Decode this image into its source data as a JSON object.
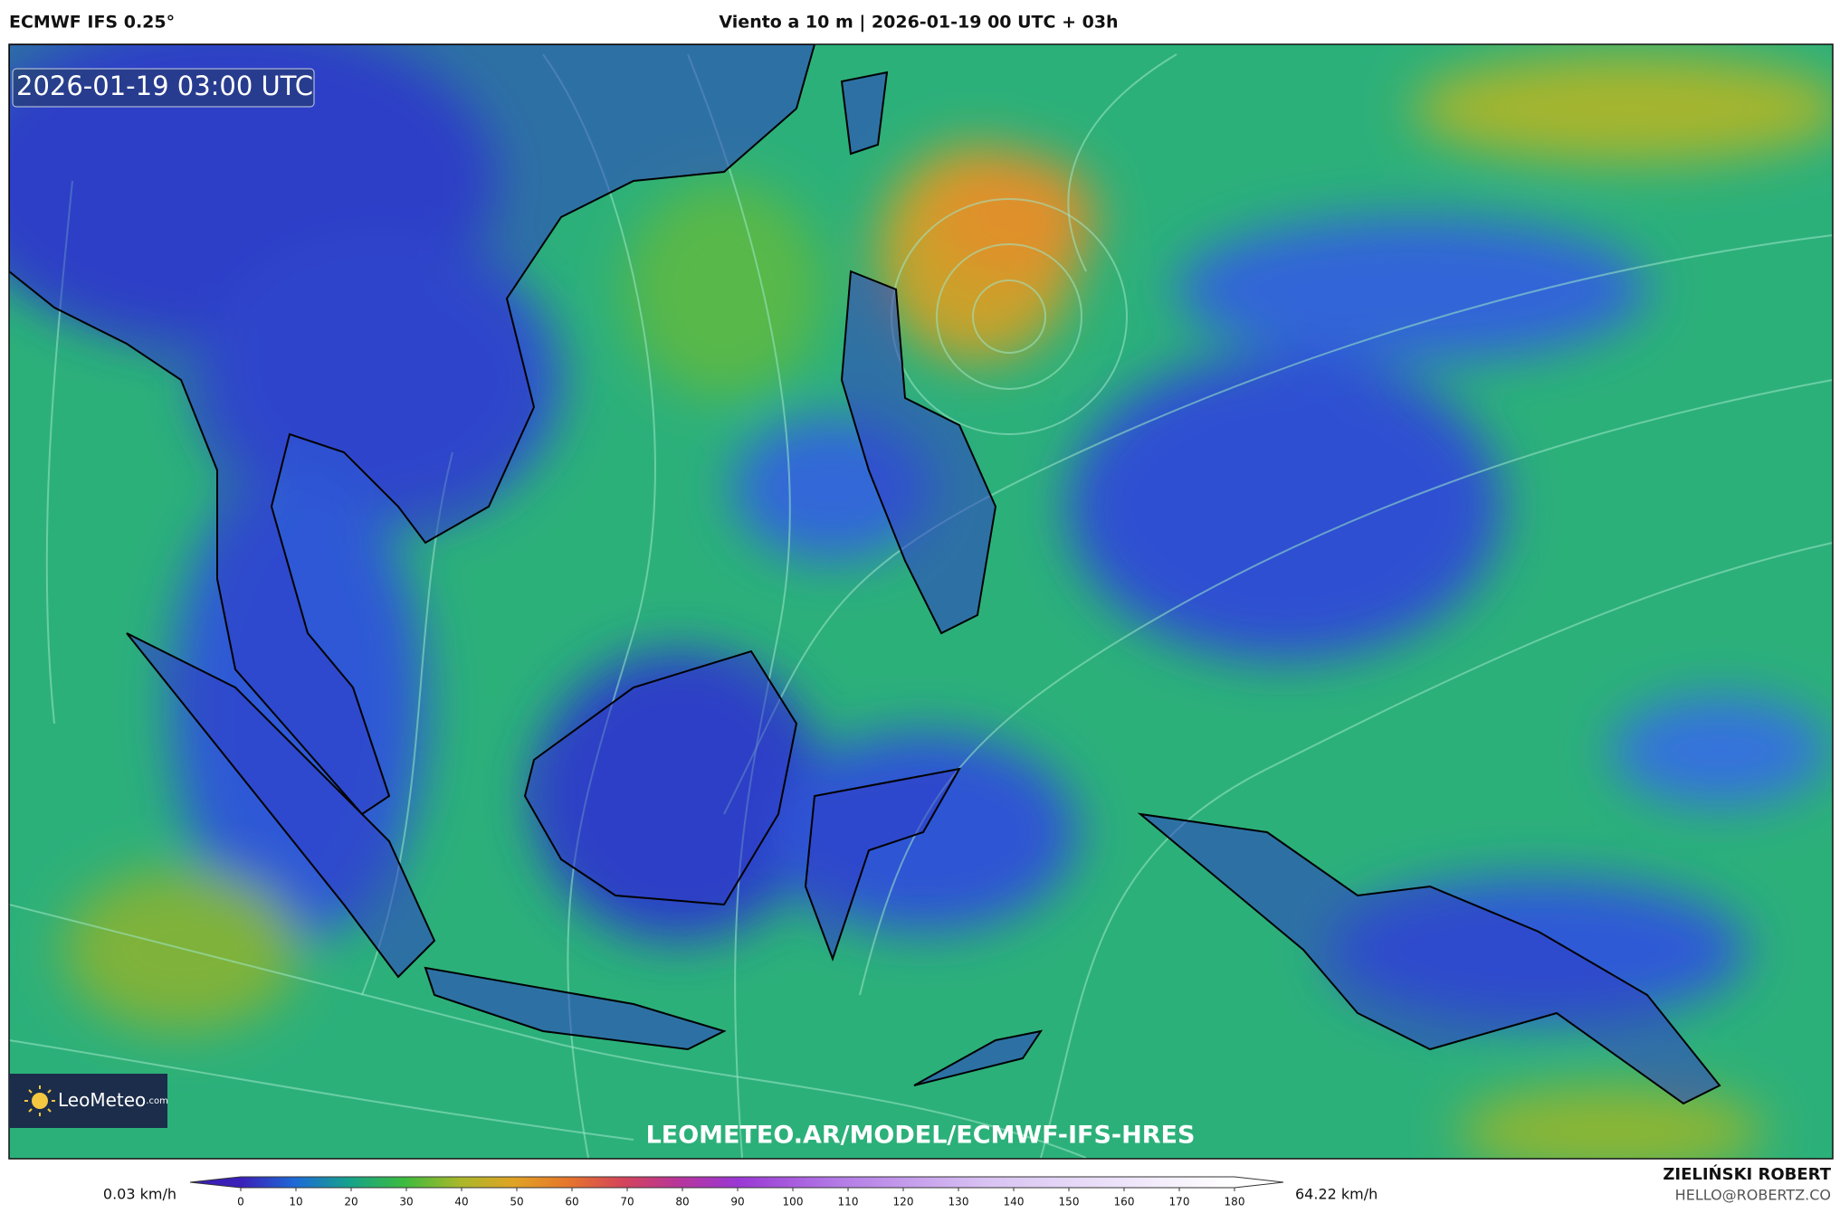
{
  "header": {
    "model": "ECMWF IFS 0.25°",
    "title": "Viento a 10 m | 2026-01-19 00 UTC + 03h"
  },
  "map": {
    "timestamp": "2026-01-19 03:00 UTC",
    "logo": "LeoMeteo",
    "logo_suffix": ".com",
    "watermark": "LEOMETEO.AR/MODEL/ECMWF-IFS-HRES"
  },
  "colorbar": {
    "lim": [
      0,
      180
    ],
    "ticks": [
      0,
      10,
      20,
      30,
      40,
      50,
      60,
      70,
      80,
      90,
      100,
      110,
      120,
      130,
      140,
      150,
      160,
      170,
      180
    ],
    "min_label": "0.03 km/h",
    "max_label": "64.22 km/h"
  },
  "footer": {
    "author": "ZIELIŃSKI ROBERT",
    "email": "HELLO@ROBERTZ.CO"
  }
}
